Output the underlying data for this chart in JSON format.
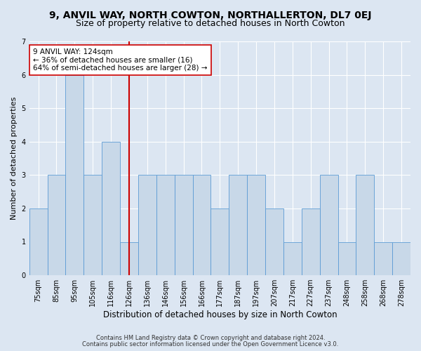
{
  "title": "9, ANVIL WAY, NORTH COWTON, NORTHALLERTON, DL7 0EJ",
  "subtitle": "Size of property relative to detached houses in North Cowton",
  "xlabel": "Distribution of detached houses by size in North Cowton",
  "ylabel": "Number of detached properties",
  "footnote1": "Contains HM Land Registry data © Crown copyright and database right 2024.",
  "footnote2": "Contains public sector information licensed under the Open Government Licence v3.0.",
  "categories": [
    "75sqm",
    "85sqm",
    "95sqm",
    "105sqm",
    "116sqm",
    "126sqm",
    "136sqm",
    "146sqm",
    "156sqm",
    "166sqm",
    "177sqm",
    "187sqm",
    "197sqm",
    "207sqm",
    "217sqm",
    "227sqm",
    "237sqm",
    "248sqm",
    "258sqm",
    "268sqm",
    "278sqm"
  ],
  "values": [
    2,
    3,
    6,
    3,
    4,
    1,
    3,
    3,
    3,
    3,
    2,
    3,
    3,
    2,
    1,
    2,
    3,
    1,
    3,
    1,
    1
  ],
  "bar_color": "#c8d8e8",
  "bar_edge_color": "#5b9bd5",
  "property_index": 5,
  "red_line_color": "#cc0000",
  "annotation_text": "9 ANVIL WAY: 124sqm\n← 36% of detached houses are smaller (16)\n64% of semi-detached houses are larger (28) →",
  "annotation_box_color": "#ffffff",
  "annotation_box_edge": "#cc0000",
  "ylim": [
    0,
    7
  ],
  "yticks": [
    0,
    1,
    2,
    3,
    4,
    5,
    6,
    7
  ],
  "background_color": "#dce6f2",
  "plot_background_color": "#dce6f2",
  "grid_color": "#ffffff",
  "title_fontsize": 10,
  "subtitle_fontsize": 9,
  "xlabel_fontsize": 8.5,
  "ylabel_fontsize": 8,
  "tick_fontsize": 7,
  "annotation_fontsize": 7.5,
  "footnote_fontsize": 6
}
